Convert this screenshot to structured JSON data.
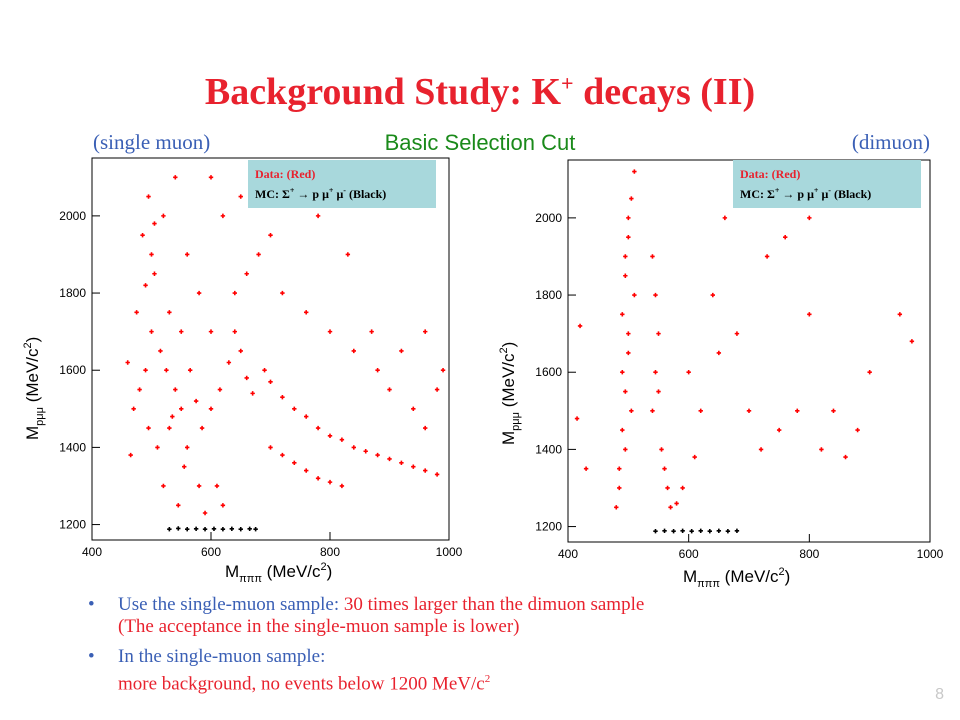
{
  "slide": {
    "title_main": "Background Study: K",
    "title_sup": "+",
    "title_tail": " decays (II)",
    "subtitle_left": "(single muon)",
    "subtitle_center": "Basic Selection Cut",
    "subtitle_right": "(dimuon)",
    "page_number": "8",
    "colors": {
      "title": "#e8222e",
      "data": "#ff0000",
      "mc": "#000000",
      "legend_bg": "#a8d8dc",
      "bullet_blue": "#3a5fb5"
    }
  },
  "legend": {
    "line1": "Data: (Red)",
    "line2_pre": "MC: ",
    "line2_sigma": "Σ",
    "line2_sup": "+",
    "line2_mid": " → p μ",
    "line2_sup2": "+",
    "line2_mid2": " μ",
    "line2_sup3": "-",
    "line2_post": " (Black)"
  },
  "axes": {
    "x_label_main": "M",
    "x_label_sub": "πππ",
    "x_label_unit": " (MeV/c",
    "x_label_sup": "2",
    "x_label_close": ")",
    "y_label_main": "M",
    "y_label_sub": "pμμ",
    "y_label_unit": " (MeV/c",
    "y_label_sup": "2",
    "y_label_close": ")"
  },
  "bullets": [
    {
      "part1": "Use the single-muon sample: ",
      "part2": "30 times larger than the dimuon sample",
      "part3": "(The acceptance in the single-muon sample is lower)"
    },
    {
      "part1": "In the single-muon sample:",
      "part2": "more background, no events below 1200 MeV/c",
      "sup": "2"
    }
  ],
  "chart_data": [
    {
      "type": "scatter",
      "panel": "single muon",
      "title": "",
      "xlabel": "Mπππ (MeV/c²)",
      "ylabel": "Mpμμ (MeV/c²)",
      "xlim": [
        400,
        1000
      ],
      "ylim": [
        1160,
        2150
      ],
      "x_ticks": [
        400,
        600,
        800,
        1000
      ],
      "y_ticks": [
        1200,
        1400,
        1600,
        1800,
        2000
      ],
      "grid": false,
      "legend_position": "top-right",
      "series": [
        {
          "name": "Data",
          "color": "#ff0000",
          "points": [
            [
              470,
              1500
            ],
            [
              480,
              1550
            ],
            [
              490,
              1600
            ],
            [
              495,
              1450
            ],
            [
              500,
              1700
            ],
            [
              505,
              1850
            ],
            [
              485,
              1950
            ],
            [
              495,
              2050
            ],
            [
              510,
              1400
            ],
            [
              520,
              1300
            ],
            [
              530,
              1450
            ],
            [
              540,
              1550
            ],
            [
              550,
              1500
            ],
            [
              560,
              1400
            ],
            [
              545,
              1250
            ],
            [
              465,
              1380
            ],
            [
              460,
              1620
            ],
            [
              475,
              1750
            ],
            [
              490,
              1820
            ],
            [
              500,
              1900
            ],
            [
              505,
              1980
            ],
            [
              515,
              1650
            ],
            [
              525,
              1600
            ],
            [
              535,
              1480
            ],
            [
              555,
              1350
            ],
            [
              565,
              1600
            ],
            [
              575,
              1520
            ],
            [
              585,
              1450
            ],
            [
              600,
              1500
            ],
            [
              615,
              1550
            ],
            [
              630,
              1620
            ],
            [
              640,
              1700
            ],
            [
              650,
              1650
            ],
            [
              660,
              1580
            ],
            [
              670,
              1540
            ],
            [
              690,
              1600
            ],
            [
              700,
              1570
            ],
            [
              720,
              1530
            ],
            [
              740,
              1500
            ],
            [
              760,
              1480
            ],
            [
              780,
              1450
            ],
            [
              800,
              1430
            ],
            [
              820,
              1420
            ],
            [
              840,
              1400
            ],
            [
              860,
              1390
            ],
            [
              880,
              1380
            ],
            [
              900,
              1370
            ],
            [
              920,
              1360
            ],
            [
              940,
              1350
            ],
            [
              960,
              1340
            ],
            [
              980,
              1330
            ],
            [
              700,
              1400
            ],
            [
              720,
              1380
            ],
            [
              740,
              1360
            ],
            [
              760,
              1340
            ],
            [
              780,
              1320
            ],
            [
              800,
              1310
            ],
            [
              820,
              1300
            ],
            [
              640,
              1800
            ],
            [
              660,
              1850
            ],
            [
              680,
              1900
            ],
            [
              700,
              1950
            ],
            [
              620,
              2000
            ],
            [
              600,
              2100
            ],
            [
              650,
              2050
            ],
            [
              720,
              1800
            ],
            [
              760,
              1750
            ],
            [
              800,
              1700
            ],
            [
              840,
              1650
            ],
            [
              880,
              1600
            ],
            [
              920,
              1650
            ],
            [
              960,
              1700
            ],
            [
              990,
              1600
            ],
            [
              980,
              1550
            ],
            [
              960,
              1450
            ],
            [
              940,
              1500
            ],
            [
              900,
              1550
            ],
            [
              870,
              1700
            ],
            [
              830,
              1900
            ],
            [
              780,
              2000
            ],
            [
              740,
              2100
            ],
            [
              560,
              1900
            ],
            [
              580,
              1800
            ],
            [
              550,
              1700
            ],
            [
              530,
              1750
            ],
            [
              520,
              2000
            ],
            [
              540,
              2100
            ],
            [
              600,
              1700
            ],
            [
              610,
              1300
            ],
            [
              620,
              1250
            ],
            [
              580,
              1300
            ],
            [
              590,
              1230
            ]
          ]
        },
        {
          "name": "MC",
          "color": "#000000",
          "points": [
            [
              530,
              1188
            ],
            [
              545,
              1190
            ],
            [
              560,
              1188
            ],
            [
              575,
              1189
            ],
            [
              590,
              1188
            ],
            [
              605,
              1189
            ],
            [
              620,
              1188
            ],
            [
              635,
              1189
            ],
            [
              650,
              1188
            ],
            [
              665,
              1189
            ],
            [
              675,
              1188
            ]
          ]
        }
      ]
    },
    {
      "type": "scatter",
      "panel": "dimuon",
      "title": "",
      "xlabel": "Mπππ (MeV/c²)",
      "ylabel": "Mpμμ (MeV/c²)",
      "xlim": [
        400,
        1000
      ],
      "ylim": [
        1160,
        2150
      ],
      "x_ticks": [
        400,
        600,
        800,
        1000
      ],
      "y_ticks": [
        1200,
        1400,
        1600,
        1800,
        2000
      ],
      "grid": false,
      "legend_position": "top-right",
      "series": [
        {
          "name": "Data",
          "color": "#ff0000",
          "points": [
            [
              480,
              1250
            ],
            [
              485,
              1350
            ],
            [
              490,
              1450
            ],
            [
              495,
              1550
            ],
            [
              500,
              1650
            ],
            [
              490,
              1750
            ],
            [
              495,
              1850
            ],
            [
              500,
              1950
            ],
            [
              505,
              2050
            ],
            [
              510,
              2120
            ],
            [
              485,
              1300
            ],
            [
              495,
              1400
            ],
            [
              505,
              1500
            ],
            [
              490,
              1600
            ],
            [
              500,
              1700
            ],
            [
              510,
              1800
            ],
            [
              495,
              1900
            ],
            [
              500,
              2000
            ],
            [
              540,
              1500
            ],
            [
              545,
              1600
            ],
            [
              550,
              1550
            ],
            [
              560,
              1350
            ],
            [
              565,
              1300
            ],
            [
              570,
              1250
            ],
            [
              550,
              1700
            ],
            [
              545,
              1800
            ],
            [
              540,
              1900
            ],
            [
              555,
              1400
            ],
            [
              420,
              1720
            ],
            [
              415,
              1480
            ],
            [
              430,
              1350
            ],
            [
              600,
              1600
            ],
            [
              620,
              1500
            ],
            [
              650,
              1650
            ],
            [
              680,
              1700
            ],
            [
              700,
              1500
            ],
            [
              720,
              1400
            ],
            [
              750,
              1450
            ],
            [
              780,
              1500
            ],
            [
              800,
              1750
            ],
            [
              820,
              1400
            ],
            [
              840,
              1500
            ],
            [
              860,
              1380
            ],
            [
              880,
              1450
            ],
            [
              900,
              1600
            ],
            [
              950,
              1750
            ],
            [
              970,
              1680
            ],
            [
              730,
              1900
            ],
            [
              760,
              1950
            ],
            [
              800,
              2000
            ],
            [
              830,
              2050
            ],
            [
              700,
              2100
            ],
            [
              660,
              2000
            ],
            [
              640,
              1800
            ],
            [
              610,
              1380
            ],
            [
              590,
              1300
            ],
            [
              580,
              1260
            ]
          ]
        },
        {
          "name": "MC",
          "color": "#000000",
          "points": [
            [
              545,
              1188
            ],
            [
              560,
              1189
            ],
            [
              575,
              1188
            ],
            [
              590,
              1189
            ],
            [
              605,
              1188
            ],
            [
              620,
              1189
            ],
            [
              635,
              1188
            ],
            [
              650,
              1189
            ],
            [
              665,
              1188
            ],
            [
              680,
              1189
            ]
          ]
        }
      ]
    }
  ]
}
